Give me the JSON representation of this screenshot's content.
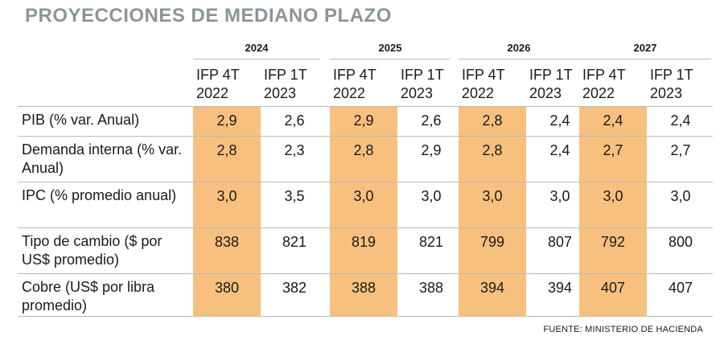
{
  "title": "PROYECCIONES DE MEDIANO PLAZO",
  "source": "FUENTE: MINISTERIO DE HACIENDA",
  "colors": {
    "highlight": "#f8c07e",
    "title": "#8b949a",
    "rule": "#b9b9b9"
  },
  "chart_data": {
    "type": "table",
    "title": "PROYECCIONES DE MEDIANO PLAZO",
    "years": [
      "2024",
      "2025",
      "2026",
      "2027"
    ],
    "subcolumns": [
      "IFP 4T 2022",
      "IFP 1T 2023"
    ],
    "subcolumn_lines": [
      [
        "IFP 4T",
        "2022"
      ],
      [
        "IFP 1T",
        "2023"
      ]
    ],
    "highlighted_subcolumn": "IFP 4T 2022",
    "rows": [
      {
        "label": "PIB (% var. Anual)",
        "values": [
          "2,9",
          "2,6",
          "2,9",
          "2,6",
          "2,8",
          "2,4",
          "2,4",
          "2,4"
        ]
      },
      {
        "label": "Demanda interna (% var. Anual)",
        "values": [
          "2,8",
          "2,3",
          "2,8",
          "2,9",
          "2,8",
          "2,4",
          "2,7",
          "2,7"
        ]
      },
      {
        "label": "IPC (% promedio anual)",
        "values": [
          "3,0",
          "3,5",
          "3,0",
          "3,0",
          "3,0",
          "3,0",
          "3,0",
          "3,0"
        ]
      },
      {
        "label": "Tipo de cambio ($ por US$ promedio)",
        "values": [
          "838",
          "821",
          "819",
          "821",
          "799",
          "807",
          "792",
          "800"
        ]
      },
      {
        "label": "Cobre (US$ por libra promedio)",
        "values": [
          "380",
          "382",
          "388",
          "388",
          "394",
          "394",
          "407",
          "407"
        ]
      }
    ]
  }
}
